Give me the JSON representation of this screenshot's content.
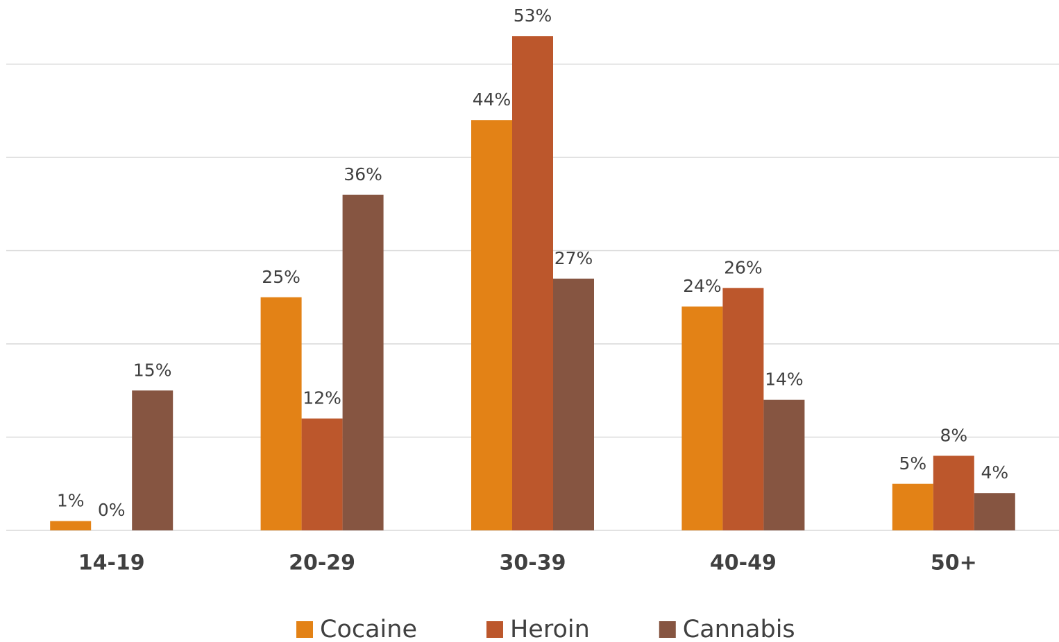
{
  "chart_data": {
    "type": "bar",
    "categories": [
      "14-19",
      "20-29",
      "30-39",
      "40-49",
      "50+"
    ],
    "series": [
      {
        "name": "Cocaine",
        "color": "#e38216",
        "values": [
          1,
          25,
          44,
          24,
          5
        ],
        "value_labels": [
          "1%",
          "25%",
          "44%",
          "24%",
          "5%"
        ]
      },
      {
        "name": "Heroin",
        "color": "#bc572c",
        "values": [
          0,
          12,
          53,
          26,
          8
        ],
        "value_labels": [
          "0%",
          "12%",
          "53%",
          "26%",
          "8%"
        ]
      },
      {
        "name": "Cannabis",
        "color": "#865541",
        "values": [
          15,
          36,
          27,
          14,
          4
        ],
        "value_labels": [
          "15%",
          "36%",
          "27%",
          "14%",
          "4%"
        ]
      }
    ],
    "ylim": [
      0,
      60
    ],
    "yticks": [
      0,
      10,
      20,
      30,
      40,
      50
    ],
    "grid": true,
    "legend": "bottom"
  }
}
